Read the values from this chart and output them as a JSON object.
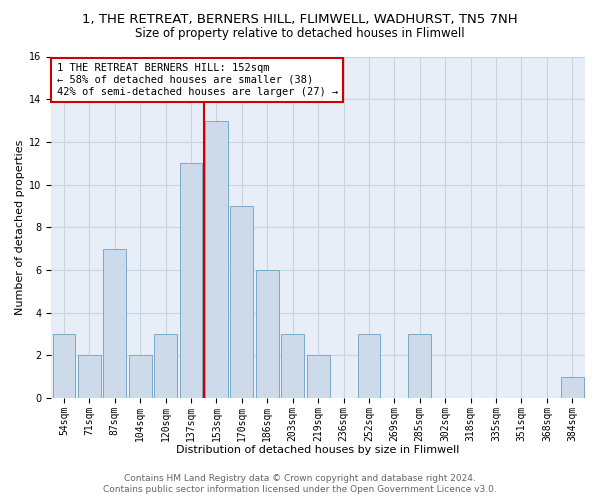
{
  "title1": "1, THE RETREAT, BERNERS HILL, FLIMWELL, WADHURST, TN5 7NH",
  "title2": "Size of property relative to detached houses in Flimwell",
  "xlabel": "Distribution of detached houses by size in Flimwell",
  "ylabel": "Number of detached properties",
  "categories": [
    "54sqm",
    "71sqm",
    "87sqm",
    "104sqm",
    "120sqm",
    "137sqm",
    "153sqm",
    "170sqm",
    "186sqm",
    "203sqm",
    "219sqm",
    "236sqm",
    "252sqm",
    "269sqm",
    "285sqm",
    "302sqm",
    "318sqm",
    "335sqm",
    "351sqm",
    "368sqm",
    "384sqm"
  ],
  "values": [
    3,
    2,
    7,
    2,
    3,
    11,
    13,
    9,
    6,
    3,
    2,
    0,
    3,
    0,
    3,
    0,
    0,
    0,
    0,
    0,
    1
  ],
  "bar_color": "#ccdaea",
  "bar_edge_color": "#7aaac8",
  "subject_line_color": "#cc0000",
  "annotation_text": "1 THE RETREAT BERNERS HILL: 152sqm\n← 58% of detached houses are smaller (38)\n42% of semi-detached houses are larger (27) →",
  "annotation_box_color": "#cc0000",
  "ylim": [
    0,
    16
  ],
  "yticks": [
    0,
    2,
    4,
    6,
    8,
    10,
    12,
    14,
    16
  ],
  "grid_color": "#c8d4e4",
  "background_color": "#e8eef8",
  "footer1": "Contains HM Land Registry data © Crown copyright and database right 2024.",
  "footer2": "Contains public sector information licensed under the Open Government Licence v3.0.",
  "title1_fontsize": 9.5,
  "title2_fontsize": 8.5,
  "xlabel_fontsize": 8,
  "ylabel_fontsize": 8,
  "tick_fontsize": 7,
  "annotation_fontsize": 7.5,
  "footer_fontsize": 6.5
}
